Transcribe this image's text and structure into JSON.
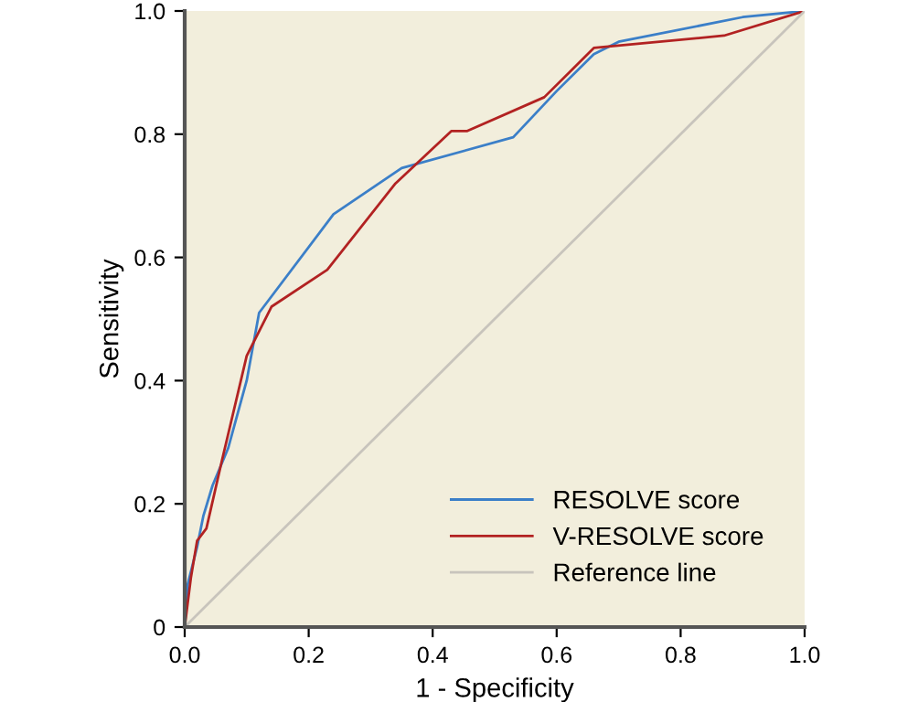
{
  "chart_data": {
    "type": "line",
    "xlabel": "1 - Specificity",
    "ylabel": "Sensitivity",
    "xlim": [
      0,
      1
    ],
    "ylim": [
      0,
      1
    ],
    "xticks": [
      {
        "value": 0,
        "label": "0.0"
      },
      0.2,
      0.4,
      0.6,
      0.8,
      {
        "value": 1,
        "label": "1.0"
      }
    ],
    "yticks": [
      0,
      0.2,
      0.4,
      0.6,
      0.8,
      {
        "value": 1,
        "label": "1.0"
      }
    ],
    "grid": false,
    "legend": "bottom right",
    "marker": "none",
    "line_style": "solid",
    "series": [
      {
        "name": "RESOLVE score",
        "color": "#3b7fc8",
        "x": [
          0,
          0.005,
          0.02,
          0.03,
          0.045,
          0.07,
          0.1,
          0.12,
          0.24,
          0.35,
          0.53,
          0.6,
          0.66,
          0.7,
          0.9,
          1
        ],
        "values": [
          0,
          0.07,
          0.13,
          0.18,
          0.23,
          0.29,
          0.4,
          0.51,
          0.67,
          0.745,
          0.795,
          0.87,
          0.93,
          0.95,
          0.99,
          1
        ]
      },
      {
        "name": "V-RESOLVE score",
        "color": "#b22222",
        "x": [
          0,
          0.01,
          0.02,
          0.035,
          0.06,
          0.1,
          0.14,
          0.23,
          0.34,
          0.43,
          0.455,
          0.58,
          0.62,
          0.66,
          0.87,
          1
        ],
        "values": [
          0,
          0.08,
          0.14,
          0.16,
          0.27,
          0.44,
          0.52,
          0.58,
          0.72,
          0.805,
          0.805,
          0.86,
          0.9,
          0.94,
          0.96,
          1
        ]
      },
      {
        "name": "Reference line",
        "color": "#c8c4bc",
        "x": [
          0,
          1
        ],
        "values": [
          0,
          1
        ]
      }
    ]
  }
}
